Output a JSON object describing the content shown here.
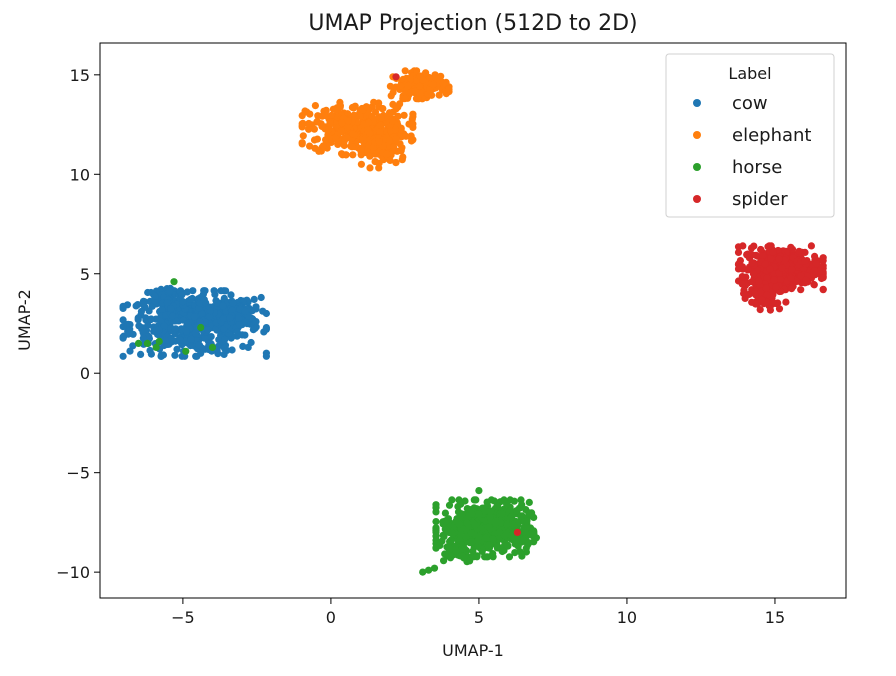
{
  "chart_data": {
    "type": "scatter",
    "title": "UMAP Projection (512D to 2D)",
    "xlabel": "UMAP-1",
    "ylabel": "UMAP-2",
    "xlim": [
      -7.8,
      17.4
    ],
    "ylim": [
      -11.3,
      16.6
    ],
    "xticks": [
      -5,
      0,
      5,
      10,
      15
    ],
    "yticks": [
      -10,
      -5,
      0,
      5,
      10,
      15
    ],
    "xtick_labels": [
      "−5",
      "0",
      "5",
      "10",
      "15"
    ],
    "ytick_labels": [
      "−10",
      "−5",
      "0",
      "5",
      "10",
      "15"
    ],
    "grid": false,
    "legend": {
      "title": "Label",
      "placement": "top-right"
    },
    "series": [
      {
        "name": "cow",
        "color": "#1f77b4",
        "clusters": [
          {
            "cx": -4.6,
            "cy": 2.5,
            "sx": 1.1,
            "sy": 0.75,
            "n": 520
          },
          {
            "cx": -3.3,
            "cy": 3.1,
            "sx": 0.35,
            "sy": 0.3,
            "n": 60
          },
          {
            "cx": -5.6,
            "cy": 3.6,
            "sx": 0.35,
            "sy": 0.4,
            "n": 50
          }
        ],
        "points": [
          [
            -6.4,
            3.1
          ],
          [
            -2.9,
            3.1
          ],
          [
            -4.4,
            1.0
          ],
          [
            -5.2,
            1.2
          ]
        ]
      },
      {
        "name": "elephant",
        "color": "#ff7f0e",
        "clusters": [
          {
            "cx": 0.9,
            "cy": 12.3,
            "sx": 0.85,
            "sy": 0.6,
            "n": 380
          },
          {
            "cx": 1.8,
            "cy": 11.2,
            "sx": 0.35,
            "sy": 0.4,
            "n": 70
          },
          {
            "cx": 3.0,
            "cy": 14.5,
            "sx": 0.45,
            "sy": 0.32,
            "n": 140
          }
        ],
        "points": [
          [
            -0.3,
            12.4
          ],
          [
            2.0,
            10.7
          ],
          [
            3.2,
            15.1
          ],
          [
            1.2,
            13.4
          ]
        ]
      },
      {
        "name": "horse",
        "color": "#2ca02c",
        "clusters": [
          {
            "cx": 5.2,
            "cy": -7.8,
            "sx": 0.75,
            "sy": 0.65,
            "n": 480
          },
          {
            "cx": 4.2,
            "cy": -9.0,
            "sx": 0.35,
            "sy": 0.25,
            "n": 40
          },
          {
            "cx": 6.3,
            "cy": -8.2,
            "sx": 0.3,
            "sy": 0.35,
            "n": 40
          }
        ],
        "points": [
          [
            3.1,
            -10.0
          ],
          [
            3.3,
            -9.9
          ],
          [
            3.5,
            -9.8
          ],
          [
            6.6,
            -8.8
          ],
          [
            5.0,
            -5.9
          ],
          [
            -4.9,
            1.1
          ],
          [
            -5.9,
            1.3
          ],
          [
            -6.2,
            1.5
          ],
          [
            -6.5,
            1.5
          ],
          [
            -5.8,
            1.6
          ],
          [
            -4.4,
            2.3
          ],
          [
            -5.3,
            4.6
          ],
          [
            -4.0,
            1.3
          ]
        ]
      },
      {
        "name": "spider",
        "color": "#d62728",
        "clusters": [
          {
            "cx": 15.2,
            "cy": 5.3,
            "sx": 0.65,
            "sy": 0.5,
            "n": 480
          },
          {
            "cx": 14.6,
            "cy": 3.9,
            "sx": 0.35,
            "sy": 0.4,
            "n": 70
          }
        ],
        "points": [
          [
            2.2,
            14.9
          ],
          [
            6.3,
            -8.0
          ],
          [
            14.5,
            3.2
          ],
          [
            16.4,
            5.5
          ]
        ]
      }
    ]
  }
}
